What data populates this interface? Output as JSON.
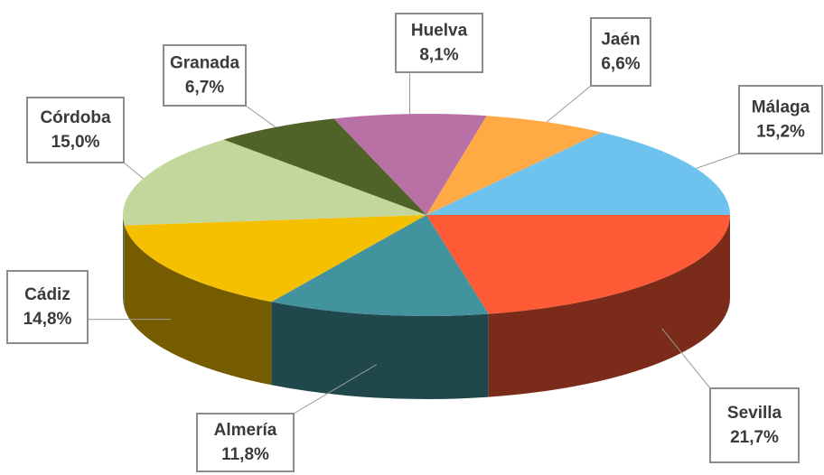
{
  "chart_data": {
    "type": "pie3d",
    "categories": [
      "Sevilla",
      "Almería",
      "Cádiz",
      "Córdoba",
      "Granada",
      "Huelva",
      "Jaén",
      "Málaga"
    ],
    "values": [
      21.7,
      11.8,
      14.8,
      15.0,
      6.7,
      8.1,
      6.6,
      15.2
    ],
    "value_labels": [
      "21,7%",
      "11,8%",
      "14,8%",
      "15,0%",
      "6,7%",
      "8,1%",
      "6,6%",
      "15,2%"
    ],
    "colors": [
      "#ff5a36",
      "#43939e",
      "#f5c000",
      "#c3d69b",
      "#4f6228",
      "#b870a5",
      "#ffaa44",
      "#6dc3ee"
    ]
  }
}
